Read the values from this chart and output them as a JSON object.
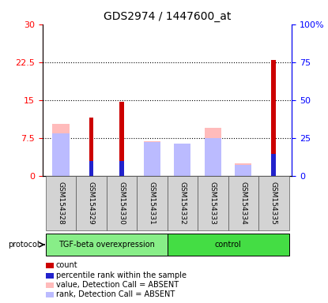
{
  "title": "GDS2974 / 1447600_at",
  "samples": [
    "GSM154328",
    "GSM154329",
    "GSM154330",
    "GSM154331",
    "GSM154332",
    "GSM154333",
    "GSM154334",
    "GSM154335"
  ],
  "count_values": [
    0,
    11.5,
    14.6,
    0,
    0,
    0,
    0,
    23.0
  ],
  "percentile_values": [
    0,
    9.5,
    9.5,
    0,
    0,
    0,
    0,
    14.5
  ],
  "value_absent": [
    10.2,
    0,
    0,
    6.8,
    5.5,
    9.5,
    2.5,
    0
  ],
  "rank_absent_pct": [
    28.0,
    0,
    0,
    22.0,
    21.0,
    25.0,
    7.0,
    0
  ],
  "left_ylim": [
    0,
    30
  ],
  "right_ylim": [
    0,
    100
  ],
  "left_yticks": [
    0,
    7.5,
    15,
    22.5,
    30
  ],
  "right_yticks": [
    0,
    25,
    50,
    75,
    100
  ],
  "left_yticklabels": [
    "0",
    "7.5",
    "15",
    "22.5",
    "30"
  ],
  "right_yticklabels": [
    "0",
    "25",
    "50",
    "75",
    "100%"
  ],
  "color_count": "#cc0000",
  "color_percentile": "#2222cc",
  "color_value_absent": "#ffbbbb",
  "color_rank_absent": "#bbbbff",
  "group1_label": "TGF-beta overexpression",
  "group2_label": "control",
  "group1_color": "#88ee88",
  "group2_color": "#44dd44",
  "protocol_label": "protocol",
  "wide_bar_width": 0.55,
  "narrow_bar_width": 0.15
}
